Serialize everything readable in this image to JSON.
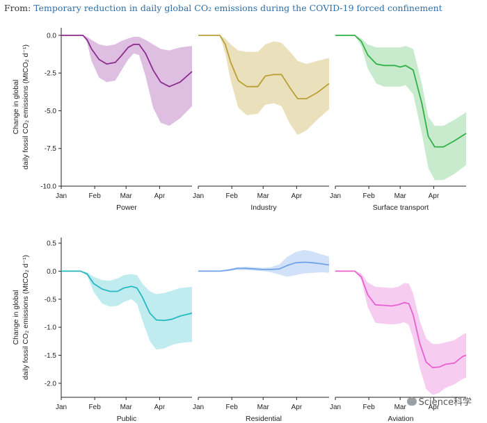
{
  "header": {
    "from_label": "From:",
    "link_text": "Temporary reduction in daily global CO₂ emissions during the COVID-19 forced confinement"
  },
  "watermark": "Science科学",
  "chart_data": [
    {
      "type": "area",
      "panel": "Power",
      "ylabel_line1": "Change in global",
      "ylabel_line2": "daily fossil CO₂ emissions (MtCO₂ d⁻¹)",
      "ylim": [
        -10.0,
        0.5
      ],
      "yticks": [
        "0.0",
        "-2.5",
        "-5.0",
        "-7.5",
        "-10.0"
      ],
      "ytick_values": [
        0.0,
        -2.5,
        -5.0,
        -7.5,
        -10.0
      ],
      "xticks": [
        "Jan",
        "Feb",
        "Mar",
        "Apr"
      ],
      "xtick_values": [
        0,
        31,
        60,
        91
      ],
      "xlim": [
        0,
        121
      ],
      "color": "#8b2a8f",
      "fill": "#d8b4dc",
      "x": [
        0,
        10,
        20,
        24,
        28,
        35,
        42,
        50,
        55,
        62,
        67,
        72,
        78,
        85,
        92,
        100,
        110,
        121
      ],
      "mean": [
        0.0,
        0.0,
        0.0,
        -0.3,
        -0.9,
        -1.6,
        -1.9,
        -1.8,
        -1.4,
        -0.8,
        -0.6,
        -0.6,
        -1.2,
        -2.3,
        -3.1,
        -3.4,
        -3.1,
        -2.4
      ],
      "upper": [
        0.0,
        0.0,
        0.0,
        -0.1,
        -0.3,
        -0.6,
        -0.7,
        -0.6,
        -0.4,
        -0.2,
        -0.1,
        -0.1,
        -0.3,
        -0.6,
        -0.9,
        -1.0,
        -0.8,
        -0.7
      ],
      "lower": [
        0.0,
        0.0,
        0.0,
        -0.5,
        -1.7,
        -2.8,
        -3.1,
        -3.0,
        -2.4,
        -1.6,
        -1.2,
        -1.3,
        -2.7,
        -4.8,
        -5.8,
        -6.0,
        -5.5,
        -4.7
      ]
    },
    {
      "type": "area",
      "panel": "Industry",
      "ylim": [
        -10.0,
        0.5
      ],
      "xticks": [
        "Jan",
        "Feb",
        "Mar",
        "Apr"
      ],
      "xtick_values": [
        0,
        31,
        60,
        91
      ],
      "xlim": [
        0,
        121
      ],
      "color": "#b8a032",
      "fill": "#e6dcb0",
      "x": [
        0,
        10,
        20,
        25,
        30,
        37,
        45,
        55,
        62,
        70,
        77,
        85,
        92,
        100,
        110,
        121
      ],
      "mean": [
        0.0,
        0.0,
        0.0,
        -0.6,
        -1.8,
        -3.0,
        -3.4,
        -3.4,
        -2.7,
        -2.6,
        -2.6,
        -3.5,
        -4.2,
        -4.2,
        -3.8,
        -3.2
      ],
      "upper": [
        0.0,
        0.0,
        0.0,
        -0.2,
        -0.6,
        -1.0,
        -1.1,
        -1.1,
        -0.6,
        -0.4,
        -0.5,
        -1.1,
        -1.7,
        -1.9,
        -1.7,
        -1.5
      ],
      "lower": [
        0.0,
        0.0,
        0.0,
        -1.2,
        -3.0,
        -4.8,
        -5.3,
        -5.2,
        -4.6,
        -4.5,
        -4.7,
        -5.9,
        -6.6,
        -6.3,
        -5.6,
        -4.9
      ]
    },
    {
      "type": "area",
      "panel": "Surface transport",
      "ylim": [
        -10.0,
        0.5
      ],
      "xticks": [
        "Jan",
        "Feb",
        "Mar",
        "Apr"
      ],
      "xtick_values": [
        0,
        31,
        60,
        91
      ],
      "xlim": [
        0,
        121
      ],
      "color": "#2fb045",
      "fill": "#bfe8c4",
      "x": [
        0,
        10,
        18,
        24,
        30,
        38,
        45,
        55,
        60,
        65,
        72,
        80,
        86,
        92,
        100,
        110,
        121
      ],
      "mean": [
        0.0,
        0.0,
        0.0,
        -0.4,
        -1.3,
        -1.9,
        -2.0,
        -2.0,
        -2.1,
        -2.0,
        -2.3,
        -4.5,
        -6.7,
        -7.4,
        -7.4,
        -7.0,
        -6.5
      ],
      "upper": [
        0.0,
        0.0,
        0.0,
        -0.2,
        -0.6,
        -0.8,
        -0.8,
        -0.8,
        -0.8,
        -0.7,
        -0.9,
        -3.2,
        -5.4,
        -6.0,
        -6.0,
        -5.6,
        -5.1
      ],
      "lower": [
        0.0,
        0.0,
        0.0,
        -0.7,
        -2.2,
        -3.2,
        -3.4,
        -3.4,
        -3.4,
        -3.3,
        -3.9,
        -6.5,
        -8.8,
        -9.6,
        -9.6,
        -9.2,
        -8.6
      ]
    },
    {
      "type": "area",
      "panel": "Public",
      "ylabel_line1": "Change in global",
      "ylabel_line2": "daily fossil CO₂ emissions (MtCO₂ d⁻¹)",
      "ylim": [
        -2.25,
        0.6
      ],
      "yticks": [
        "0.5",
        "0.0",
        "-0.5",
        "-1.0",
        "-1.5",
        "-2.0"
      ],
      "ytick_values": [
        0.5,
        0.0,
        -0.5,
        -1.0,
        -1.5,
        -2.0
      ],
      "xticks": [
        "Jan",
        "Feb",
        "Mar",
        "Apr"
      ],
      "xtick_values": [
        0,
        31,
        60,
        91
      ],
      "xlim": [
        0,
        121
      ],
      "color": "#25b8c4",
      "fill": "#b6e9ec",
      "x": [
        0,
        10,
        18,
        24,
        30,
        38,
        45,
        52,
        58,
        65,
        70,
        75,
        82,
        88,
        95,
        102,
        110,
        121
      ],
      "mean": [
        0.0,
        0.0,
        0.0,
        -0.05,
        -0.22,
        -0.32,
        -0.36,
        -0.36,
        -0.3,
        -0.27,
        -0.3,
        -0.46,
        -0.75,
        -0.87,
        -0.88,
        -0.86,
        -0.8,
        -0.75
      ],
      "upper": [
        0.0,
        0.0,
        0.0,
        -0.02,
        -0.1,
        -0.16,
        -0.17,
        -0.13,
        -0.07,
        -0.05,
        -0.07,
        -0.22,
        -0.36,
        -0.41,
        -0.39,
        -0.35,
        -0.3,
        -0.28
      ],
      "lower": [
        0.0,
        0.0,
        0.0,
        -0.08,
        -0.37,
        -0.58,
        -0.63,
        -0.62,
        -0.55,
        -0.5,
        -0.58,
        -0.87,
        -1.25,
        -1.4,
        -1.38,
        -1.32,
        -1.28,
        -1.26
      ]
    },
    {
      "type": "area",
      "panel": "Residential",
      "ylim": [
        -2.25,
        0.6
      ],
      "xticks": [
        "Jan",
        "Feb",
        "Mar",
        "Apr"
      ],
      "xtick_values": [
        0,
        31,
        60,
        91
      ],
      "xlim": [
        0,
        121
      ],
      "color": "#6fa3e8",
      "fill": "#c9dcf7",
      "x": [
        0,
        10,
        20,
        28,
        36,
        44,
        52,
        60,
        67,
        75,
        82,
        90,
        98,
        106,
        114,
        121
      ],
      "mean": [
        0.0,
        0.0,
        0.0,
        0.02,
        0.05,
        0.05,
        0.04,
        0.03,
        0.03,
        0.04,
        0.1,
        0.15,
        0.16,
        0.15,
        0.13,
        0.11
      ],
      "upper": [
        0.0,
        0.0,
        0.0,
        0.03,
        0.07,
        0.08,
        0.07,
        0.06,
        0.07,
        0.12,
        0.25,
        0.34,
        0.38,
        0.35,
        0.3,
        0.26
      ],
      "lower": [
        0.0,
        0.0,
        0.0,
        0.0,
        0.02,
        0.02,
        0.01,
        0.0,
        -0.02,
        -0.06,
        -0.1,
        -0.07,
        -0.04,
        -0.03,
        -0.02,
        -0.03
      ]
    },
    {
      "type": "area",
      "panel": "Aviation",
      "ylim": [
        -2.25,
        0.6
      ],
      "xticks": [
        "Jan",
        "Feb",
        "Mar",
        "Apr"
      ],
      "xtick_values": [
        0,
        31,
        60,
        91
      ],
      "xlim": [
        0,
        121
      ],
      "color": "#e85fd2",
      "fill": "#f6c3ee",
      "x": [
        0,
        10,
        18,
        24,
        30,
        37,
        45,
        52,
        58,
        64,
        68,
        72,
        78,
        84,
        90,
        96,
        102,
        110,
        118,
        121
      ],
      "mean": [
        0.0,
        0.0,
        0.0,
        -0.1,
        -0.42,
        -0.6,
        -0.61,
        -0.62,
        -0.6,
        -0.56,
        -0.58,
        -0.78,
        -1.28,
        -1.62,
        -1.72,
        -1.71,
        -1.66,
        -1.64,
        -1.52,
        -1.5
      ],
      "upper": [
        0.0,
        0.0,
        0.0,
        -0.04,
        -0.2,
        -0.28,
        -0.29,
        -0.3,
        -0.28,
        -0.21,
        -0.22,
        -0.4,
        -0.88,
        -1.2,
        -1.3,
        -1.3,
        -1.27,
        -1.23,
        -1.13,
        -1.1
      ],
      "lower": [
        0.0,
        0.0,
        0.0,
        -0.16,
        -0.64,
        -0.92,
        -0.94,
        -0.95,
        -0.94,
        -0.91,
        -0.96,
        -1.2,
        -1.72,
        -2.1,
        -2.21,
        -2.17,
        -2.08,
        -2.02,
        -1.92,
        -1.9
      ]
    }
  ]
}
